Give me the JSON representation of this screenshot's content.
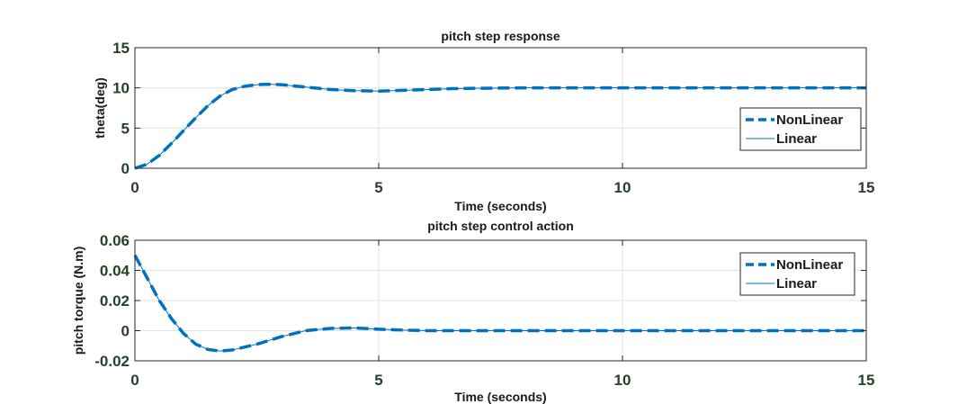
{
  "chart_data": [
    {
      "type": "line",
      "title": "pitch step response",
      "xlabel": "Time (seconds)",
      "ylabel": "theta(deg)",
      "xlim": [
        0,
        15
      ],
      "ylim": [
        0,
        15
      ],
      "xticks": [
        "0",
        "5",
        "10",
        "15"
      ],
      "yticks": [
        "0",
        "5",
        "10",
        "15"
      ],
      "xtick_values": [
        0,
        5,
        10,
        15
      ],
      "ytick_values": [
        0,
        5,
        10,
        15
      ],
      "grid": true,
      "legend_position": "right",
      "color": "#0072BD",
      "x": [
        0,
        0.25,
        0.5,
        0.75,
        1.0,
        1.25,
        1.5,
        1.75,
        2.0,
        2.25,
        2.5,
        2.75,
        3.0,
        3.5,
        4.0,
        4.5,
        5.0,
        5.5,
        6.0,
        6.5,
        7.0,
        8.0,
        9.0,
        10.0,
        11.0,
        12.0,
        13.0,
        14.0,
        15.0
      ],
      "series": [
        {
          "name": "NonLinear",
          "style": "dashed",
          "values": [
            0,
            0.5,
            1.6,
            3.1,
            4.7,
            6.3,
            7.8,
            9.0,
            9.8,
            10.2,
            10.4,
            10.45,
            10.4,
            10.1,
            9.8,
            9.65,
            9.6,
            9.7,
            9.8,
            9.9,
            9.95,
            10.0,
            10.0,
            10.0,
            10.0,
            10.0,
            10.0,
            10.0,
            10.0
          ]
        },
        {
          "name": "Linear",
          "style": "solid",
          "values": [
            0,
            0.5,
            1.6,
            3.1,
            4.7,
            6.3,
            7.8,
            9.0,
            9.8,
            10.2,
            10.4,
            10.45,
            10.4,
            10.1,
            9.8,
            9.65,
            9.6,
            9.7,
            9.8,
            9.9,
            9.95,
            10.0,
            10.0,
            10.0,
            10.0,
            10.0,
            10.0,
            10.0,
            10.0
          ]
        }
      ]
    },
    {
      "type": "line",
      "title": "pitch step control action",
      "xlabel": "Time (seconds)",
      "ylabel": "pitch torque (N.m)",
      "xlim": [
        0,
        15
      ],
      "ylim": [
        -0.02,
        0.06
      ],
      "xticks": [
        "0",
        "5",
        "10",
        "15"
      ],
      "yticks": [
        "-0.02",
        "0",
        "0.02",
        "0.04",
        "0.06"
      ],
      "xtick_values": [
        0,
        5,
        10,
        15
      ],
      "ytick_values": [
        -0.02,
        0,
        0.02,
        0.04,
        0.06
      ],
      "grid": true,
      "legend_position": "top-right",
      "color": "#0072BD",
      "x": [
        0,
        0.25,
        0.5,
        0.75,
        1.0,
        1.25,
        1.5,
        1.75,
        2.0,
        2.5,
        3.0,
        3.5,
        4.0,
        4.5,
        5.0,
        5.5,
        6.0,
        7.0,
        8.0,
        9.0,
        10.0,
        11.0,
        12.0,
        13.0,
        14.0,
        15.0
      ],
      "series": [
        {
          "name": "NonLinear",
          "style": "dashed",
          "values": [
            0.05,
            0.035,
            0.02,
            0.008,
            -0.002,
            -0.009,
            -0.0125,
            -0.0135,
            -0.0128,
            -0.009,
            -0.004,
            0.0,
            0.0015,
            0.0018,
            0.001,
            0.0004,
            0.0,
            0.0,
            0.0,
            0.0,
            0.0,
            0.0,
            0.0,
            0.0,
            0.0,
            0.0
          ]
        },
        {
          "name": "Linear",
          "style": "solid",
          "values": [
            0.05,
            0.035,
            0.02,
            0.008,
            -0.002,
            -0.009,
            -0.0125,
            -0.0135,
            -0.0128,
            -0.009,
            -0.004,
            0.0,
            0.0015,
            0.0018,
            0.001,
            0.0004,
            0.0,
            0.0,
            0.0,
            0.0,
            0.0,
            0.0,
            0.0,
            0.0,
            0.0,
            0.0
          ]
        }
      ]
    }
  ]
}
